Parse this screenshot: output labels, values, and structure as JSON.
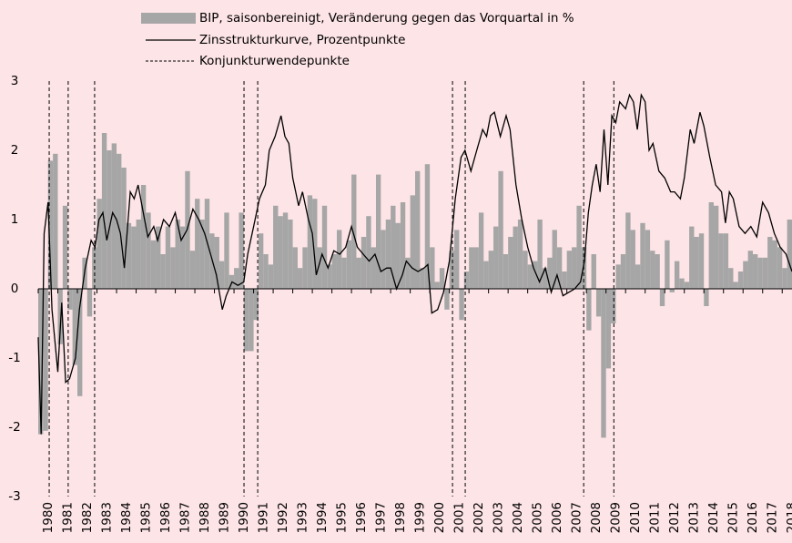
{
  "chart_data": {
    "type": "combo",
    "xlim": [
      1980,
      2018.5
    ],
    "ylim": [
      -3,
      3
    ],
    "yticks": [
      -3,
      -2,
      -1,
      0,
      1,
      2,
      3
    ],
    "xticks": [
      1980,
      1981,
      1982,
      1983,
      1984,
      1985,
      1986,
      1987,
      1988,
      1989,
      1990,
      1991,
      1992,
      1993,
      1994,
      1995,
      1996,
      1997,
      1998,
      1999,
      2000,
      2001,
      2002,
      2003,
      2004,
      2005,
      2006,
      2007,
      2008,
      2009,
      2010,
      2011,
      2012,
      2013,
      2014,
      2015,
      2016,
      2017,
      2018
    ],
    "series": [
      {
        "name": "BIP, saisonbereinigt, Veränderung gegen das Vorquartal in %",
        "type": "bar",
        "color": "#a6a6a6",
        "x": [
          1980,
          1980.25,
          1980.5,
          1980.75,
          1981,
          1981.25,
          1981.5,
          1981.75,
          1982,
          1982.25,
          1982.5,
          1982.75,
          1983,
          1983.25,
          1983.5,
          1983.75,
          1984,
          1984.25,
          1984.5,
          1984.75,
          1985,
          1985.25,
          1985.5,
          1985.75,
          1986,
          1986.25,
          1986.5,
          1986.75,
          1987,
          1987.25,
          1987.5,
          1987.75,
          1988,
          1988.25,
          1988.5,
          1988.75,
          1989,
          1989.25,
          1989.5,
          1989.75,
          1990,
          1990.25,
          1990.5,
          1990.75,
          1991,
          1991.25,
          1991.5,
          1991.75,
          1992,
          1992.25,
          1992.5,
          1992.75,
          1993,
          1993.25,
          1993.5,
          1993.75,
          1994,
          1994.25,
          1994.5,
          1994.75,
          1995,
          1995.25,
          1995.5,
          1995.75,
          1996,
          1996.25,
          1996.5,
          1996.75,
          1997,
          1997.25,
          1997.5,
          1997.75,
          1998,
          1998.25,
          1998.5,
          1998.75,
          1999,
          1999.25,
          1999.5,
          1999.75,
          2000,
          2000.25,
          2000.5,
          2000.75,
          2001,
          2001.25,
          2001.5,
          2001.75,
          2002,
          2002.25,
          2002.5,
          2002.75,
          2003,
          2003.25,
          2003.5,
          2003.75,
          2004,
          2004.25,
          2004.5,
          2004.75,
          2005,
          2005.25,
          2005.5,
          2005.75,
          2006,
          2006.25,
          2006.5,
          2006.75,
          2007,
          2007.25,
          2007.5,
          2007.75,
          2008,
          2008.25,
          2008.5,
          2008.75,
          2009,
          2009.25,
          2009.5,
          2009.75,
          2010,
          2010.25,
          2010.5,
          2010.75,
          2011,
          2011.25,
          2011.5,
          2011.75,
          2012,
          2012.25,
          2012.5,
          2012.75,
          2013,
          2013.25,
          2013.5,
          2013.75,
          2014,
          2014.25,
          2014.5,
          2014.75,
          2015,
          2015.25,
          2015.5,
          2015.75,
          2016,
          2016.25,
          2016.5,
          2016.75,
          2017,
          2017.25,
          2017.5,
          2017.75,
          2018,
          2018.25
        ],
        "values": [
          -2.1,
          -2.05,
          1.85,
          1.95,
          -0.8,
          1.2,
          -0.3,
          -1.1,
          -1.55,
          0.45,
          -0.4,
          0.6,
          1.3,
          2.25,
          2.0,
          2.1,
          1.95,
          1.75,
          0.95,
          0.9,
          1.0,
          1.5,
          1.1,
          0.7,
          0.9,
          0.5,
          0.9,
          0.6,
          1.0,
          0.9,
          1.7,
          0.55,
          1.3,
          1.0,
          1.3,
          0.8,
          0.75,
          0.4,
          1.1,
          0.2,
          0.3,
          1.1,
          -0.9,
          -0.9,
          -0.45,
          0.8,
          0.5,
          0.35,
          1.2,
          1.05,
          1.1,
          1.0,
          0.6,
          0.3,
          0.6,
          1.35,
          1.3,
          0.6,
          1.2,
          0.35,
          0.5,
          0.85,
          0.45,
          0.7,
          1.65,
          0.45,
          0.75,
          1.05,
          0.6,
          1.65,
          0.85,
          1.0,
          1.2,
          0.95,
          1.25,
          0.45,
          1.35,
          1.7,
          0.3,
          1.8,
          0.6,
          0.1,
          0.3,
          -0.3,
          0.55,
          0.85,
          -0.45,
          0.25,
          0.6,
          0.6,
          1.1,
          0.4,
          0.55,
          0.9,
          1.7,
          0.5,
          0.75,
          0.9,
          1.0,
          0.55,
          0.35,
          0.4,
          1.0,
          0.3,
          0.45,
          0.85,
          0.6,
          0.25,
          0.55,
          0.6,
          1.2,
          0.6,
          -0.6,
          0.5,
          -0.4,
          -2.15,
          -1.15,
          -0.5,
          0.35,
          0.5,
          1.1,
          0.85,
          0.35,
          0.95,
          0.85,
          0.55,
          0.5,
          -0.25,
          0.7,
          -0.05,
          0.4,
          0.15,
          0.1,
          0.9,
          0.75,
          0.8,
          -0.25,
          1.25,
          1.2,
          0.8,
          0.8,
          0.3,
          0.1,
          0.25,
          0.4,
          0.55,
          0.5,
          0.45,
          0.45,
          0.75,
          0.7,
          0.6,
          0.3,
          1.0
        ]
      },
      {
        "name": "Zinsstrukturkurve, Prozentpunkte",
        "type": "line",
        "color": "#000000",
        "x": [
          1980.0,
          1980.15,
          1980.3,
          1980.5,
          1980.7,
          1981.0,
          1981.2,
          1981.4,
          1981.6,
          1981.9,
          1982.1,
          1982.4,
          1982.7,
          1982.9,
          1983.1,
          1983.3,
          1983.5,
          1983.8,
          1984.0,
          1984.2,
          1984.4,
          1984.7,
          1984.9,
          1985.1,
          1985.4,
          1985.6,
          1985.9,
          1986.1,
          1986.4,
          1986.7,
          1987.0,
          1987.3,
          1987.6,
          1987.9,
          1988.2,
          1988.5,
          1988.8,
          1989.1,
          1989.4,
          1989.6,
          1989.9,
          1990.2,
          1990.5,
          1990.7,
          1991.0,
          1991.3,
          1991.6,
          1991.8,
          1992.1,
          1992.4,
          1992.6,
          1992.8,
          1993.0,
          1993.3,
          1993.5,
          1993.8,
          1994.0,
          1994.2,
          1994.5,
          1994.8,
          1995.1,
          1995.4,
          1995.7,
          1996.0,
          1996.3,
          1996.6,
          1996.9,
          1997.2,
          1997.5,
          1997.8,
          1998.0,
          1998.3,
          1998.6,
          1998.8,
          1999.1,
          1999.4,
          1999.7,
          1999.9,
          2000.1,
          2000.4,
          2000.7,
          2001.0,
          2001.3,
          2001.6,
          2001.8,
          2002.1,
          2002.4,
          2002.7,
          2002.9,
          2003.1,
          2003.3,
          2003.6,
          2003.9,
          2004.1,
          2004.4,
          2004.7,
          2005.0,
          2005.3,
          2005.6,
          2005.9,
          2006.2,
          2006.5,
          2006.8,
          2007.1,
          2007.4,
          2007.7,
          2007.9,
          2008.1,
          2008.3,
          2008.5,
          2008.7,
          2008.9,
          2009.1,
          2009.3,
          2009.5,
          2009.7,
          2010.0,
          2010.2,
          2010.4,
          2010.6,
          2010.8,
          2011.0,
          2011.2,
          2011.4,
          2011.7,
          2012.0,
          2012.3,
          2012.5,
          2012.8,
          2013.0,
          2013.3,
          2013.5,
          2013.8,
          2014.0,
          2014.3,
          2014.6,
          2014.9,
          2015.1,
          2015.3,
          2015.5,
          2015.8,
          2016.1,
          2016.4,
          2016.7,
          2017.0,
          2017.3,
          2017.6,
          2017.9,
          2018.2,
          2018.5
        ],
        "values": [
          -0.7,
          -2.1,
          0.8,
          1.25,
          -0.3,
          -1.2,
          -0.2,
          -1.35,
          -1.3,
          -1.0,
          -0.3,
          0.3,
          0.7,
          0.6,
          1.0,
          1.1,
          0.7,
          1.1,
          1.0,
          0.8,
          0.3,
          1.4,
          1.3,
          1.5,
          1.05,
          0.75,
          0.9,
          0.7,
          1.0,
          0.9,
          1.1,
          0.7,
          0.85,
          1.15,
          1.0,
          0.8,
          0.5,
          0.2,
          -0.3,
          -0.1,
          0.1,
          0.05,
          0.1,
          0.5,
          0.9,
          1.3,
          1.5,
          2.0,
          2.2,
          2.5,
          2.2,
          2.1,
          1.6,
          1.2,
          1.4,
          1.0,
          0.8,
          0.2,
          0.5,
          0.3,
          0.55,
          0.5,
          0.6,
          0.9,
          0.6,
          0.5,
          0.4,
          0.5,
          0.25,
          0.3,
          0.3,
          0.0,
          0.2,
          0.4,
          0.3,
          0.25,
          0.3,
          0.35,
          -0.35,
          -0.3,
          -0.05,
          0.4,
          1.3,
          1.9,
          2.0,
          1.7,
          2.0,
          2.3,
          2.2,
          2.5,
          2.55,
          2.2,
          2.5,
          2.3,
          1.5,
          1.0,
          0.6,
          0.3,
          0.1,
          0.3,
          -0.05,
          0.2,
          -0.1,
          -0.05,
          0.0,
          0.1,
          0.4,
          1.1,
          1.5,
          1.8,
          1.4,
          2.3,
          1.5,
          2.5,
          2.4,
          2.7,
          2.6,
          2.8,
          2.7,
          2.3,
          2.8,
          2.7,
          2.0,
          2.1,
          1.7,
          1.6,
          1.4,
          1.4,
          1.3,
          1.6,
          2.3,
          2.1,
          2.55,
          2.35,
          1.9,
          1.5,
          1.4,
          0.95,
          1.4,
          1.3,
          0.9,
          0.8,
          0.9,
          0.75,
          1.25,
          1.1,
          0.8,
          0.6,
          0.5,
          0.25
        ]
      },
      {
        "name": "Konjunkturwendepunkte",
        "type": "vline",
        "color": "#000000",
        "x": [
          1980.56,
          1981.53,
          1982.88,
          1990.51,
          1991.21,
          2001.16,
          2001.81,
          2007.86,
          2009.4
        ]
      }
    ]
  }
}
